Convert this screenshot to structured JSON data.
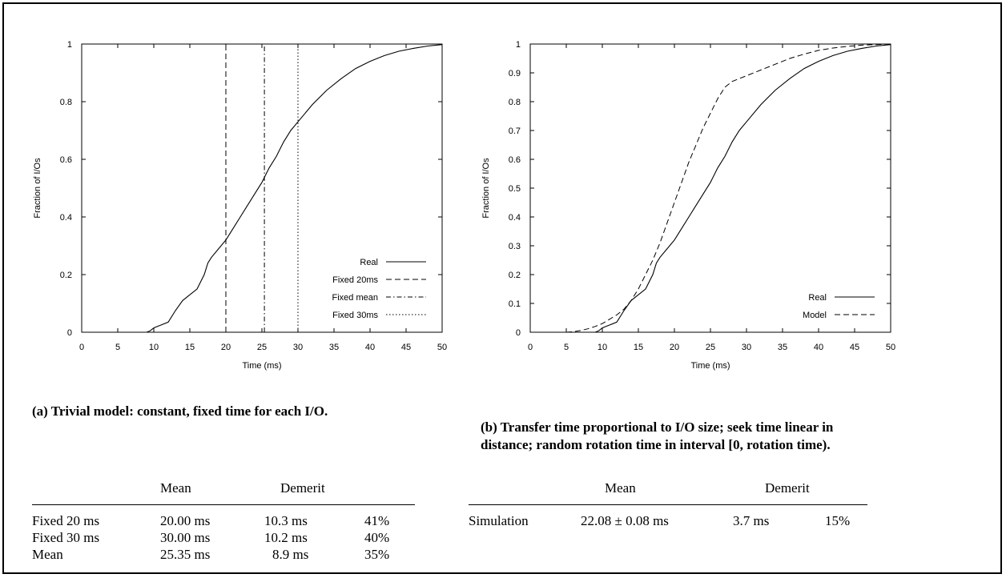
{
  "chart_data": [
    {
      "type": "line",
      "title": "",
      "xlabel": "Time (ms)",
      "ylabel": "Fraction of I/Os",
      "xlim": [
        0,
        50
      ],
      "ylim": [
        0,
        1
      ],
      "xticks": [
        "0",
        "5",
        "10",
        "15",
        "20",
        "25",
        "30",
        "35",
        "40",
        "45",
        "50"
      ],
      "yticks": [
        "0",
        "0.2",
        "0.4",
        "0.6",
        "0.8",
        "1"
      ],
      "grid": false,
      "legend_position": "bottom-right",
      "series": [
        {
          "name": "Real",
          "style": "solid",
          "x": [
            0,
            9.0,
            9.5,
            10,
            10.5,
            11,
            12,
            13,
            14,
            15,
            16,
            17,
            17.5,
            18,
            19,
            20,
            21,
            22,
            23,
            24,
            25,
            26,
            27,
            28,
            29,
            30,
            32,
            34,
            36,
            38,
            40,
            42,
            44,
            46,
            48,
            50
          ],
          "y": [
            0,
            0,
            0.005,
            0.015,
            0.02,
            0.025,
            0.035,
            0.075,
            0.11,
            0.13,
            0.15,
            0.2,
            0.24,
            0.26,
            0.29,
            0.32,
            0.36,
            0.4,
            0.44,
            0.48,
            0.52,
            0.57,
            0.61,
            0.66,
            0.7,
            0.73,
            0.79,
            0.84,
            0.88,
            0.915,
            0.94,
            0.96,
            0.975,
            0.985,
            0.993,
            0.998
          ]
        },
        {
          "name": "Fixed 20ms",
          "style": "dashed",
          "x": [
            20,
            20
          ],
          "y": [
            0,
            1
          ]
        },
        {
          "name": "Fixed mean",
          "style": "dashdot",
          "x": [
            25.35,
            25.35
          ],
          "y": [
            0,
            1
          ]
        },
        {
          "name": "Fixed 30ms",
          "style": "dotted",
          "x": [
            30,
            30
          ],
          "y": [
            0,
            1
          ]
        }
      ]
    },
    {
      "type": "line",
      "title": "",
      "xlabel": "Time (ms)",
      "ylabel": "Fraction of I/Os",
      "xlim": [
        0,
        50
      ],
      "ylim": [
        0,
        1
      ],
      "xticks": [
        "0",
        "5",
        "10",
        "15",
        "20",
        "25",
        "30",
        "35",
        "40",
        "45",
        "50"
      ],
      "yticks": [
        "0",
        "0.1",
        "0.2",
        "0.3",
        "0.4",
        "0.5",
        "0.6",
        "0.7",
        "0.8",
        "0.9",
        "1"
      ],
      "grid": false,
      "legend_position": "bottom-right",
      "series": [
        {
          "name": "Real",
          "style": "solid",
          "x": [
            0,
            9.0,
            9.5,
            10,
            10.5,
            11,
            12,
            13,
            14,
            15,
            16,
            17,
            17.5,
            18,
            19,
            20,
            21,
            22,
            23,
            24,
            25,
            26,
            27,
            28,
            29,
            30,
            32,
            34,
            36,
            38,
            40,
            42,
            44,
            46,
            48,
            50
          ],
          "y": [
            0,
            0,
            0.005,
            0.015,
            0.02,
            0.025,
            0.035,
            0.075,
            0.11,
            0.13,
            0.15,
            0.2,
            0.24,
            0.26,
            0.29,
            0.32,
            0.36,
            0.4,
            0.44,
            0.48,
            0.52,
            0.57,
            0.61,
            0.66,
            0.7,
            0.73,
            0.79,
            0.84,
            0.88,
            0.915,
            0.94,
            0.96,
            0.975,
            0.985,
            0.993,
            0.998
          ]
        },
        {
          "name": "Model",
          "style": "dashed",
          "x": [
            5,
            6,
            7,
            8,
            9,
            10,
            11,
            12,
            13,
            14,
            15,
            16,
            17,
            18,
            19,
            20,
            21,
            22,
            23,
            24,
            25,
            26,
            27,
            28,
            29,
            30,
            32,
            34,
            36,
            38,
            40,
            42,
            44,
            46,
            48,
            50
          ],
          "y": [
            0,
            0.002,
            0.006,
            0.012,
            0.02,
            0.03,
            0.045,
            0.06,
            0.08,
            0.11,
            0.15,
            0.2,
            0.25,
            0.31,
            0.38,
            0.45,
            0.52,
            0.59,
            0.65,
            0.71,
            0.76,
            0.81,
            0.85,
            0.87,
            0.88,
            0.89,
            0.91,
            0.93,
            0.95,
            0.965,
            0.978,
            0.986,
            0.992,
            0.996,
            0.998,
            1.0
          ]
        }
      ]
    }
  ],
  "captions": {
    "a": "(a) Trivial model: constant, fixed time for each I/O.",
    "b_line1": "(b) Transfer time proportional to I/O size; seek time linear in",
    "b_line2": "distance; random rotation time in interval [0, rotation time)."
  },
  "table_a": {
    "headers": [
      "Mean",
      "Demerit"
    ],
    "rows": [
      [
        "Fixed 20 ms",
        "20.00 ms",
        "10.3 ms",
        "41%"
      ],
      [
        "Fixed 30 ms",
        "30.00 ms",
        "10.2 ms",
        "40%"
      ],
      [
        "Mean",
        "25.35 ms",
        "8.9 ms",
        "35%"
      ]
    ]
  },
  "table_b": {
    "headers": [
      "Mean",
      "Demerit"
    ],
    "rows": [
      [
        "Simulation",
        "22.08 ± 0.08 ms",
        "3.7 ms",
        "15%"
      ]
    ]
  }
}
